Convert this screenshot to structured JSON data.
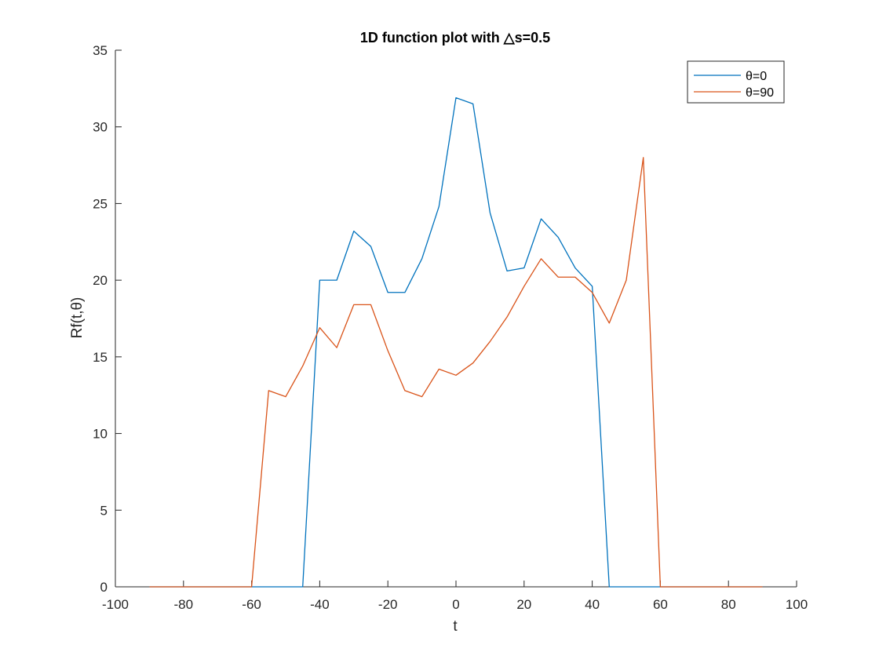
{
  "chart_data": {
    "type": "line",
    "title": "1D function plot with △s=0.5",
    "xlabel": "t",
    "ylabel": "Rf(t,θ)",
    "xlim": [
      -100,
      100
    ],
    "ylim": [
      0,
      35
    ],
    "xticks": [
      "-100",
      "-80",
      "-60",
      "-40",
      "-20",
      "0",
      "20",
      "40",
      "60",
      "80",
      "100"
    ],
    "yticks": [
      "0",
      "5",
      "10",
      "15",
      "20",
      "25",
      "30",
      "35"
    ],
    "grid": false,
    "legend_position": "top-right",
    "series": [
      {
        "name": "θ=0",
        "color": "#0072BD",
        "x": [
          -90,
          -85,
          -80,
          -75,
          -70,
          -65,
          -60,
          -55,
          -50,
          -45,
          -40,
          -35,
          -30,
          -25,
          -20,
          -15,
          -10,
          -5,
          0,
          5,
          10,
          15,
          20,
          25,
          30,
          35,
          40,
          45,
          50,
          55,
          60,
          65,
          70,
          75,
          80,
          85,
          90
        ],
        "y": [
          0,
          0,
          0,
          0,
          0,
          0,
          0,
          0,
          0,
          0,
          20,
          20,
          23.2,
          22.2,
          19.2,
          19.2,
          21.4,
          24.8,
          31.9,
          31.5,
          24.4,
          20.6,
          20.8,
          24,
          22.8,
          20.8,
          19.6,
          0,
          0,
          0,
          0,
          0,
          0,
          0,
          0,
          0,
          0
        ]
      },
      {
        "name": "θ=90",
        "color": "#D95319",
        "x": [
          -90,
          -85,
          -80,
          -75,
          -70,
          -65,
          -60,
          -55,
          -50,
          -45,
          -40,
          -35,
          -30,
          -25,
          -20,
          -15,
          -10,
          -5,
          0,
          5,
          10,
          15,
          20,
          25,
          30,
          35,
          40,
          45,
          50,
          55,
          60,
          65,
          70,
          75,
          80,
          85,
          90
        ],
        "y": [
          0,
          0,
          0,
          0,
          0,
          0,
          0,
          12.8,
          12.4,
          14.4,
          16.9,
          15.6,
          18.4,
          18.4,
          15.4,
          12.8,
          12.4,
          14.2,
          13.8,
          14.6,
          16,
          17.6,
          19.6,
          21.4,
          20.2,
          20.2,
          19.2,
          17.2,
          20,
          28,
          0,
          0,
          0,
          0,
          0,
          0,
          0
        ]
      }
    ]
  }
}
